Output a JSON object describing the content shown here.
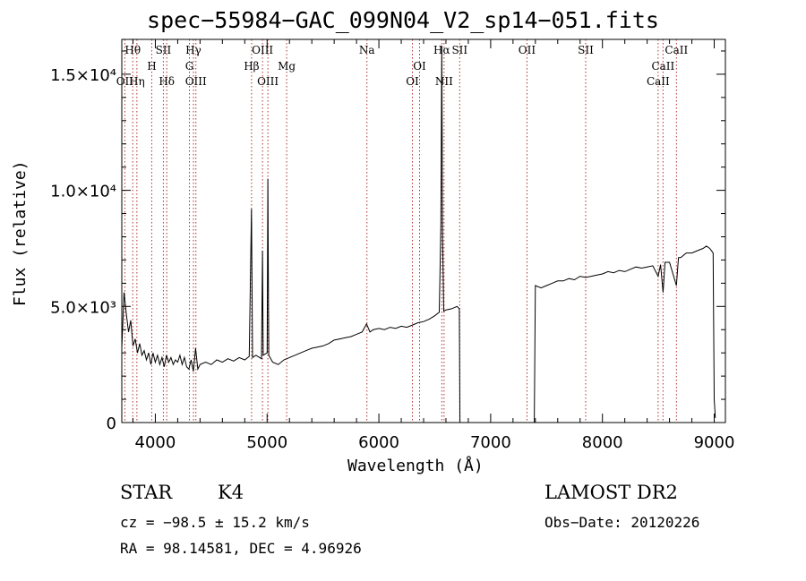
{
  "title": "spec−55984−GAC_099N04_V2_sp14−051.fits",
  "info": {
    "obj_class": "STAR",
    "subclass": "K4",
    "survey": "LAMOST DR2",
    "cz": "cz = −98.5 ± 15.2 km/s",
    "obs_date": "Obs−Date: 20120226",
    "radec": "RA =  98.14581, DEC =   4.96926"
  },
  "chart_data": {
    "type": "line",
    "title": "spec−55984−GAC_099N04_V2_sp14−051.fits",
    "xlabel": "Wavelength (Å)",
    "ylabel": "Flux (relative)",
    "xlim": [
      3700,
      9100
    ],
    "ylim": [
      0,
      16500
    ],
    "x_ticks": [
      4000,
      5000,
      6000,
      7000,
      8000,
      9000
    ],
    "y_ticks": [
      {
        "value": 0,
        "label": "0"
      },
      {
        "value": 5000,
        "label": "5.0×10³"
      },
      {
        "value": 10000,
        "label": "1.0×10⁴"
      },
      {
        "value": 15000,
        "label": "1.5×10⁴"
      }
    ],
    "grid": false,
    "line_color": "#000000",
    "marker_color": "#b03030",
    "spectrum": [
      [
        3700,
        3200
      ],
      [
        3720,
        5600
      ],
      [
        3740,
        4700
      ],
      [
        3760,
        3900
      ],
      [
        3780,
        4400
      ],
      [
        3800,
        3300
      ],
      [
        3820,
        3600
      ],
      [
        3840,
        3000
      ],
      [
        3860,
        3400
      ],
      [
        3880,
        2900
      ],
      [
        3900,
        3100
      ],
      [
        3920,
        2700
      ],
      [
        3940,
        3000
      ],
      [
        3960,
        2500
      ],
      [
        3980,
        3000
      ],
      [
        4000,
        2600
      ],
      [
        4020,
        2900
      ],
      [
        4040,
        2500
      ],
      [
        4060,
        2800
      ],
      [
        4080,
        2400
      ],
      [
        4100,
        2900
      ],
      [
        4120,
        2600
      ],
      [
        4140,
        2800
      ],
      [
        4160,
        2500
      ],
      [
        4180,
        2700
      ],
      [
        4200,
        2600
      ],
      [
        4220,
        2900
      ],
      [
        4240,
        2500
      ],
      [
        4260,
        2800
      ],
      [
        4280,
        2400
      ],
      [
        4300,
        2300
      ],
      [
        4320,
        2700
      ],
      [
        4340,
        2200
      ],
      [
        4360,
        3200
      ],
      [
        4380,
        2300
      ],
      [
        4400,
        2500
      ],
      [
        4450,
        2600
      ],
      [
        4500,
        2500
      ],
      [
        4550,
        2700
      ],
      [
        4600,
        2600
      ],
      [
        4650,
        2750
      ],
      [
        4700,
        2650
      ],
      [
        4750,
        2800
      ],
      [
        4800,
        2700
      ],
      [
        4840,
        2850
      ],
      [
        4860,
        9200
      ],
      [
        4870,
        2800
      ],
      [
        4900,
        2900
      ],
      [
        4950,
        2750
      ],
      [
        4959,
        7400
      ],
      [
        4965,
        2900
      ],
      [
        5000,
        3000
      ],
      [
        5007,
        10500
      ],
      [
        5015,
        2900
      ],
      [
        5050,
        2600
      ],
      [
        5100,
        2500
      ],
      [
        5150,
        2700
      ],
      [
        5200,
        2800
      ],
      [
        5250,
        2900
      ],
      [
        5300,
        3000
      ],
      [
        5350,
        3100
      ],
      [
        5400,
        3200
      ],
      [
        5450,
        3250
      ],
      [
        5500,
        3300
      ],
      [
        5550,
        3400
      ],
      [
        5600,
        3550
      ],
      [
        5650,
        3600
      ],
      [
        5700,
        3650
      ],
      [
        5750,
        3700
      ],
      [
        5800,
        3800
      ],
      [
        5850,
        3900
      ],
      [
        5890,
        4250
      ],
      [
        5920,
        3900
      ],
      [
        5950,
        4000
      ],
      [
        6000,
        4050
      ],
      [
        6050,
        4000
      ],
      [
        6100,
        4100
      ],
      [
        6150,
        4050
      ],
      [
        6200,
        4150
      ],
      [
        6250,
        4100
      ],
      [
        6300,
        4200
      ],
      [
        6350,
        4300
      ],
      [
        6400,
        4350
      ],
      [
        6450,
        4450
      ],
      [
        6500,
        4600
      ],
      [
        6540,
        4750
      ],
      [
        6555,
        8500
      ],
      [
        6563,
        16200
      ],
      [
        6570,
        8000
      ],
      [
        6580,
        4800
      ],
      [
        6600,
        4850
      ],
      [
        6650,
        4900
      ],
      [
        6700,
        5000
      ],
      [
        6720,
        4900
      ],
      [
        6725,
        0
      ],
      [
        7350,
        0
      ],
      [
        7390,
        0
      ],
      [
        7400,
        5900
      ],
      [
        7450,
        5800
      ],
      [
        7500,
        5900
      ],
      [
        7550,
        6000
      ],
      [
        7600,
        6100
      ],
      [
        7650,
        6100
      ],
      [
        7700,
        6200
      ],
      [
        7750,
        6150
      ],
      [
        7800,
        6300
      ],
      [
        7850,
        6250
      ],
      [
        7900,
        6300
      ],
      [
        7950,
        6350
      ],
      [
        8000,
        6400
      ],
      [
        8050,
        6500
      ],
      [
        8100,
        6450
      ],
      [
        8150,
        6550
      ],
      [
        8200,
        6500
      ],
      [
        8250,
        6600
      ],
      [
        8300,
        6700
      ],
      [
        8350,
        6650
      ],
      [
        8400,
        6700
      ],
      [
        8450,
        6750
      ],
      [
        8498,
        6300
      ],
      [
        8520,
        6800
      ],
      [
        8542,
        5600
      ],
      [
        8560,
        6900
      ],
      [
        8600,
        6900
      ],
      [
        8662,
        5900
      ],
      [
        8680,
        7100
      ],
      [
        8700,
        7100
      ],
      [
        8750,
        7300
      ],
      [
        8800,
        7300
      ],
      [
        8850,
        7400
      ],
      [
        8900,
        7500
      ],
      [
        8930,
        7600
      ],
      [
        8960,
        7500
      ],
      [
        8990,
        7300
      ],
      [
        9000,
        1000
      ],
      [
        9010,
        200
      ]
    ],
    "lines": [
      {
        "label": "Hθ",
        "wavelength": 3798,
        "row": 0
      },
      {
        "label": "OII",
        "wavelength": 3727,
        "row": 2
      },
      {
        "label": "Hη",
        "wavelength": 3835,
        "row": 2
      },
      {
        "label": "H",
        "wavelength": 3968,
        "row": 1
      },
      {
        "label": "SII",
        "wavelength": 4072,
        "row": 0
      },
      {
        "label": "Hδ",
        "wavelength": 4102,
        "row": 2
      },
      {
        "label": "Hγ",
        "wavelength": 4341,
        "row": 0
      },
      {
        "label": "G",
        "wavelength": 4305,
        "row": 1
      },
      {
        "label": "OIII",
        "wavelength": 4363,
        "row": 2
      },
      {
        "label": "OIII",
        "wavelength": 4959,
        "row": 0
      },
      {
        "label": "Hβ",
        "wavelength": 4861,
        "row": 1
      },
      {
        "label": "OIII",
        "wavelength": 5007,
        "row": 2
      },
      {
        "label": "Mg",
        "wavelength": 5175,
        "row": 1
      },
      {
        "label": "Na",
        "wavelength": 5893,
        "row": 0
      },
      {
        "label": "OI",
        "wavelength": 6364,
        "row": 1
      },
      {
        "label": "OI",
        "wavelength": 6300,
        "row": 2
      },
      {
        "label": "Hα",
        "wavelength": 6563,
        "row": 0
      },
      {
        "label": "SII",
        "wavelength": 6723,
        "row": 0
      },
      {
        "label": "NII",
        "wavelength": 6583,
        "row": 2
      },
      {
        "label": "OII",
        "wavelength": 7325,
        "row": 0
      },
      {
        "label": "SII",
        "wavelength": 7850,
        "row": 0
      },
      {
        "label": "CaII",
        "wavelength": 8662,
        "row": 0
      },
      {
        "label": "CaII",
        "wavelength": 8542,
        "row": 1
      },
      {
        "label": "CaII",
        "wavelength": 8498,
        "row": 2
      }
    ]
  }
}
